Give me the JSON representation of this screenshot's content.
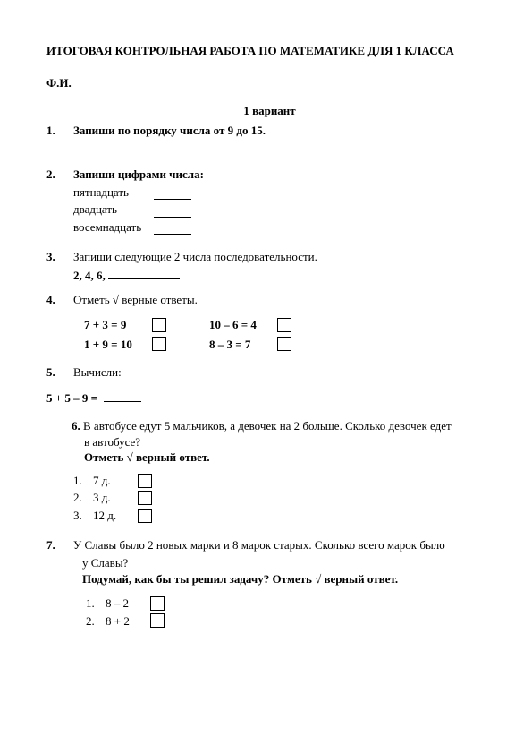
{
  "title": "ИТОГОВАЯ КОНТРОЛЬНАЯ РАБОТА  ПО МАТЕМАТИКЕ ДЛЯ 1 КЛАССА",
  "name_label": "Ф.И.",
  "variant": "1 вариант",
  "t1": {
    "num": "1.",
    "text": "Запиши по порядку числа от 9 до 15."
  },
  "t2": {
    "num": "2.",
    "text": "Запиши цифрами числа:",
    "words": [
      "пятнадцать",
      "двадцать",
      "восемнадцать"
    ]
  },
  "t3": {
    "num": "3.",
    "text": "Запиши следующие 2 числа последовательности.",
    "seq": "2, 4, 6, "
  },
  "t4": {
    "num": "4.",
    "text": "Отметь √ верные ответы.",
    "col1": [
      "7 + 3 = 9",
      "1 + 9 = 10"
    ],
    "col2": [
      "10 – 6 = 4",
      "8 – 3 = 7"
    ]
  },
  "t5": {
    "num": "5.",
    "text": "Вычисли:",
    "expr": "5 + 5 – 9 =   "
  },
  "t6": {
    "num": "6.",
    "line1": "В автобусе едут 5 мальчиков, а девочек на 2 больше. Сколько девочек едет",
    "line2": " в автобусе?",
    "instruction": "Отметь √ верный ответ.",
    "answers": [
      {
        "n": "1.",
        "label": "7 д."
      },
      {
        "n": "2.",
        "label": "3 д."
      },
      {
        "n": "3.",
        "label": "12 д."
      }
    ]
  },
  "t7": {
    "num": "7.",
    "line1": "У Славы было 2 новых марки и 8 марок старых. Сколько всего марок было",
    "line2": " у Славы?",
    "instruction": "Подумай, как бы ты решил задачу? Отметь √ верный ответ.",
    "answers": [
      {
        "n": "1.",
        "label": "8 – 2"
      },
      {
        "n": "2.",
        "label": "8 + 2"
      }
    ]
  }
}
